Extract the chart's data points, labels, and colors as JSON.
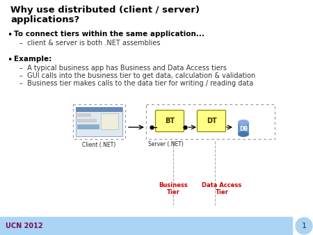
{
  "title_line1": "Why use distributed (client / server)",
  "title_line2": "applications?",
  "bullet1_bold": "To connect tiers within the same application...",
  "bullet1_sub1": "client & server is both .NET assemblies",
  "bullet2_bold": "Example:",
  "bullet2_sub1": "A typical business app has Business and Data Access tiers",
  "bullet2_sub2": "GUI calls into the business tier to get data, calculation & validation",
  "bullet2_sub3": "Business tier makes calls to the data tier for writing / reading data",
  "footer_text": "UCN 2012",
  "page_number": "1",
  "bg_color": "#ffffff",
  "footer_bg": "#aad4f5",
  "footer_text_color": "#7b1050",
  "title_color": "#000000",
  "body_color": "#000000",
  "sub_color": "#333333",
  "bt_color": "#ffff88",
  "dt_color": "#ffff88",
  "db_color": "#6699cc",
  "tier_label_color": "#cc0000",
  "diagram_border_color": "#9999aa",
  "client_border_color": "#9999aa"
}
